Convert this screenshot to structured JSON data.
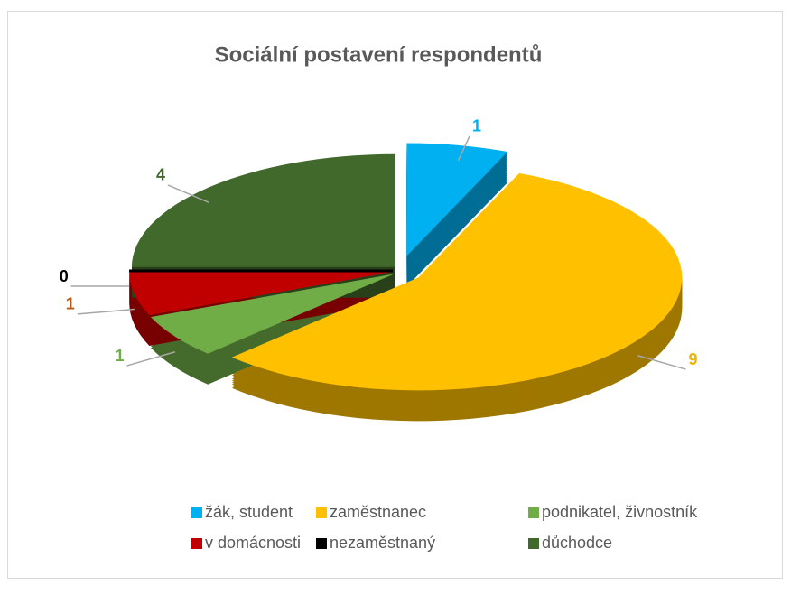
{
  "chart_data": {
    "type": "pie",
    "title": "Sociální postavení respondentů",
    "categories": [
      "žák, student",
      "zaměstnanec",
      "podnikatel, živnostník",
      "v domácnosti",
      "nezaměstnaný",
      "důchodce"
    ],
    "values": [
      1,
      9,
      1,
      1,
      0,
      4
    ],
    "colors": [
      "#00b0f0",
      "#ffc000",
      "#70ad47",
      "#c00000",
      "#000000",
      "#41692b"
    ],
    "label_colors": [
      "#00b0f0",
      "#f0b400",
      "#70ad47",
      "#b55a18",
      "#000000",
      "#41692b"
    ],
    "legend": "bottom"
  }
}
